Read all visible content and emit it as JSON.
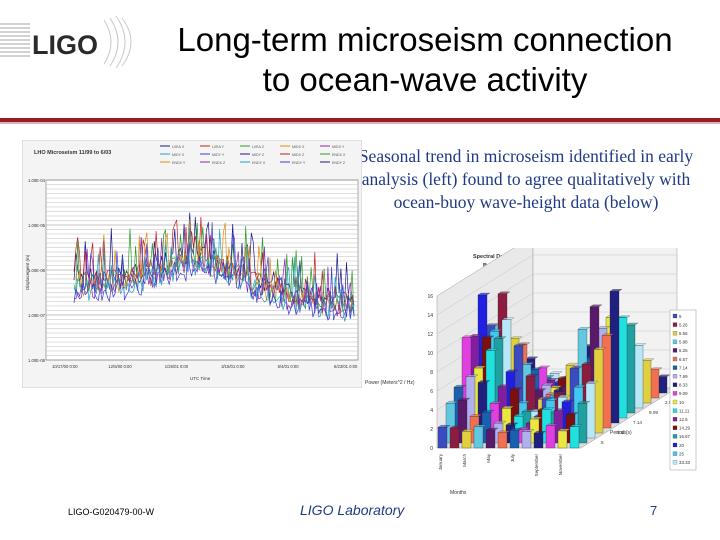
{
  "slide": {
    "logo_text": "LIGO",
    "title_line1": "Long-term microseism connection",
    "title_line2": "to ocean-wave activity",
    "description": "Seasonal trend in microseism identified in early analysis (left) found to agree qualitatively with ocean-buoy wave-height data (below)",
    "footer_id": "LIGO-G020479-00-W",
    "footer_lab": "LIGO Laboratory",
    "page_number": "7"
  },
  "chart_data": [
    {
      "type": "line",
      "title": "LHO Microseism 11/99 to 6/03",
      "xlabel": "UTC Time",
      "ylabel": "Displacement (m)",
      "y_scale": "log",
      "y_ticks": [
        "1.00E-04",
        "1.00E-05",
        "1.00E-06",
        "1.00E-07",
        "1.00E-08"
      ],
      "x_ticks": [
        "10/17/00 0:00",
        "12/6/00 0:00",
        "1/25/01 0:00",
        "3/15/01 0:00",
        "5/4/01 0:00",
        "6/23/01 0:00"
      ],
      "legend": [
        "LVEA X",
        "LVEA Y",
        "LVEA Z",
        "MIDX X",
        "MIDX Y",
        "MIDY X",
        "MIDY Y",
        "MIDY Z",
        "MIDX Z",
        "ENDX X",
        "ENDX Y",
        "ENDX Z",
        "ENDY X",
        "ENDY Y",
        "ENDY Z"
      ],
      "grid": true,
      "series_colors": [
        "#1a1a8c",
        "#c02020",
        "#2a9a2a",
        "#e08a10",
        "#8a2ab0",
        "#20a0c0",
        "#3b3bd8"
      ]
    },
    {
      "type": "bar3d",
      "title": "Spectral Data for 2000",
      "subtitle": "Buoy 46005",
      "zlabel": "Power (Meters^2 / Hz)",
      "xlabel": "Months",
      "ylabel": "Period (s)",
      "z_ticks": [
        0,
        2,
        4,
        6,
        8,
        10,
        12,
        14,
        16
      ],
      "months": [
        "January",
        "March",
        "May",
        "July",
        "September",
        "November"
      ],
      "periods_axis": [
        "20",
        "2.5",
        "9.09",
        "7.14",
        "5.56",
        "5"
      ],
      "legend": [
        "5",
        "5.26",
        "5.56",
        "5.88",
        "6.25",
        "6.67",
        "7.14",
        "7.69",
        "8.33",
        "9.09",
        "10",
        "11.11",
        "12.5",
        "14.29",
        "16.67",
        "20",
        "25",
        "33.33"
      ],
      "legend_colors": [
        "#3b4cc0",
        "#8c1d40",
        "#e0d040",
        "#60c8e0",
        "#5a1a6a",
        "#f07050",
        "#1a60b0",
        "#b0b0f0",
        "#202080",
        "#e040e0",
        "#e8e840",
        "#20e0e0",
        "#8020a0",
        "#7a1010",
        "#20a0a0",
        "#2020e0",
        "#40c8f0",
        "#b8e8f8"
      ],
      "grid": true
    }
  ]
}
